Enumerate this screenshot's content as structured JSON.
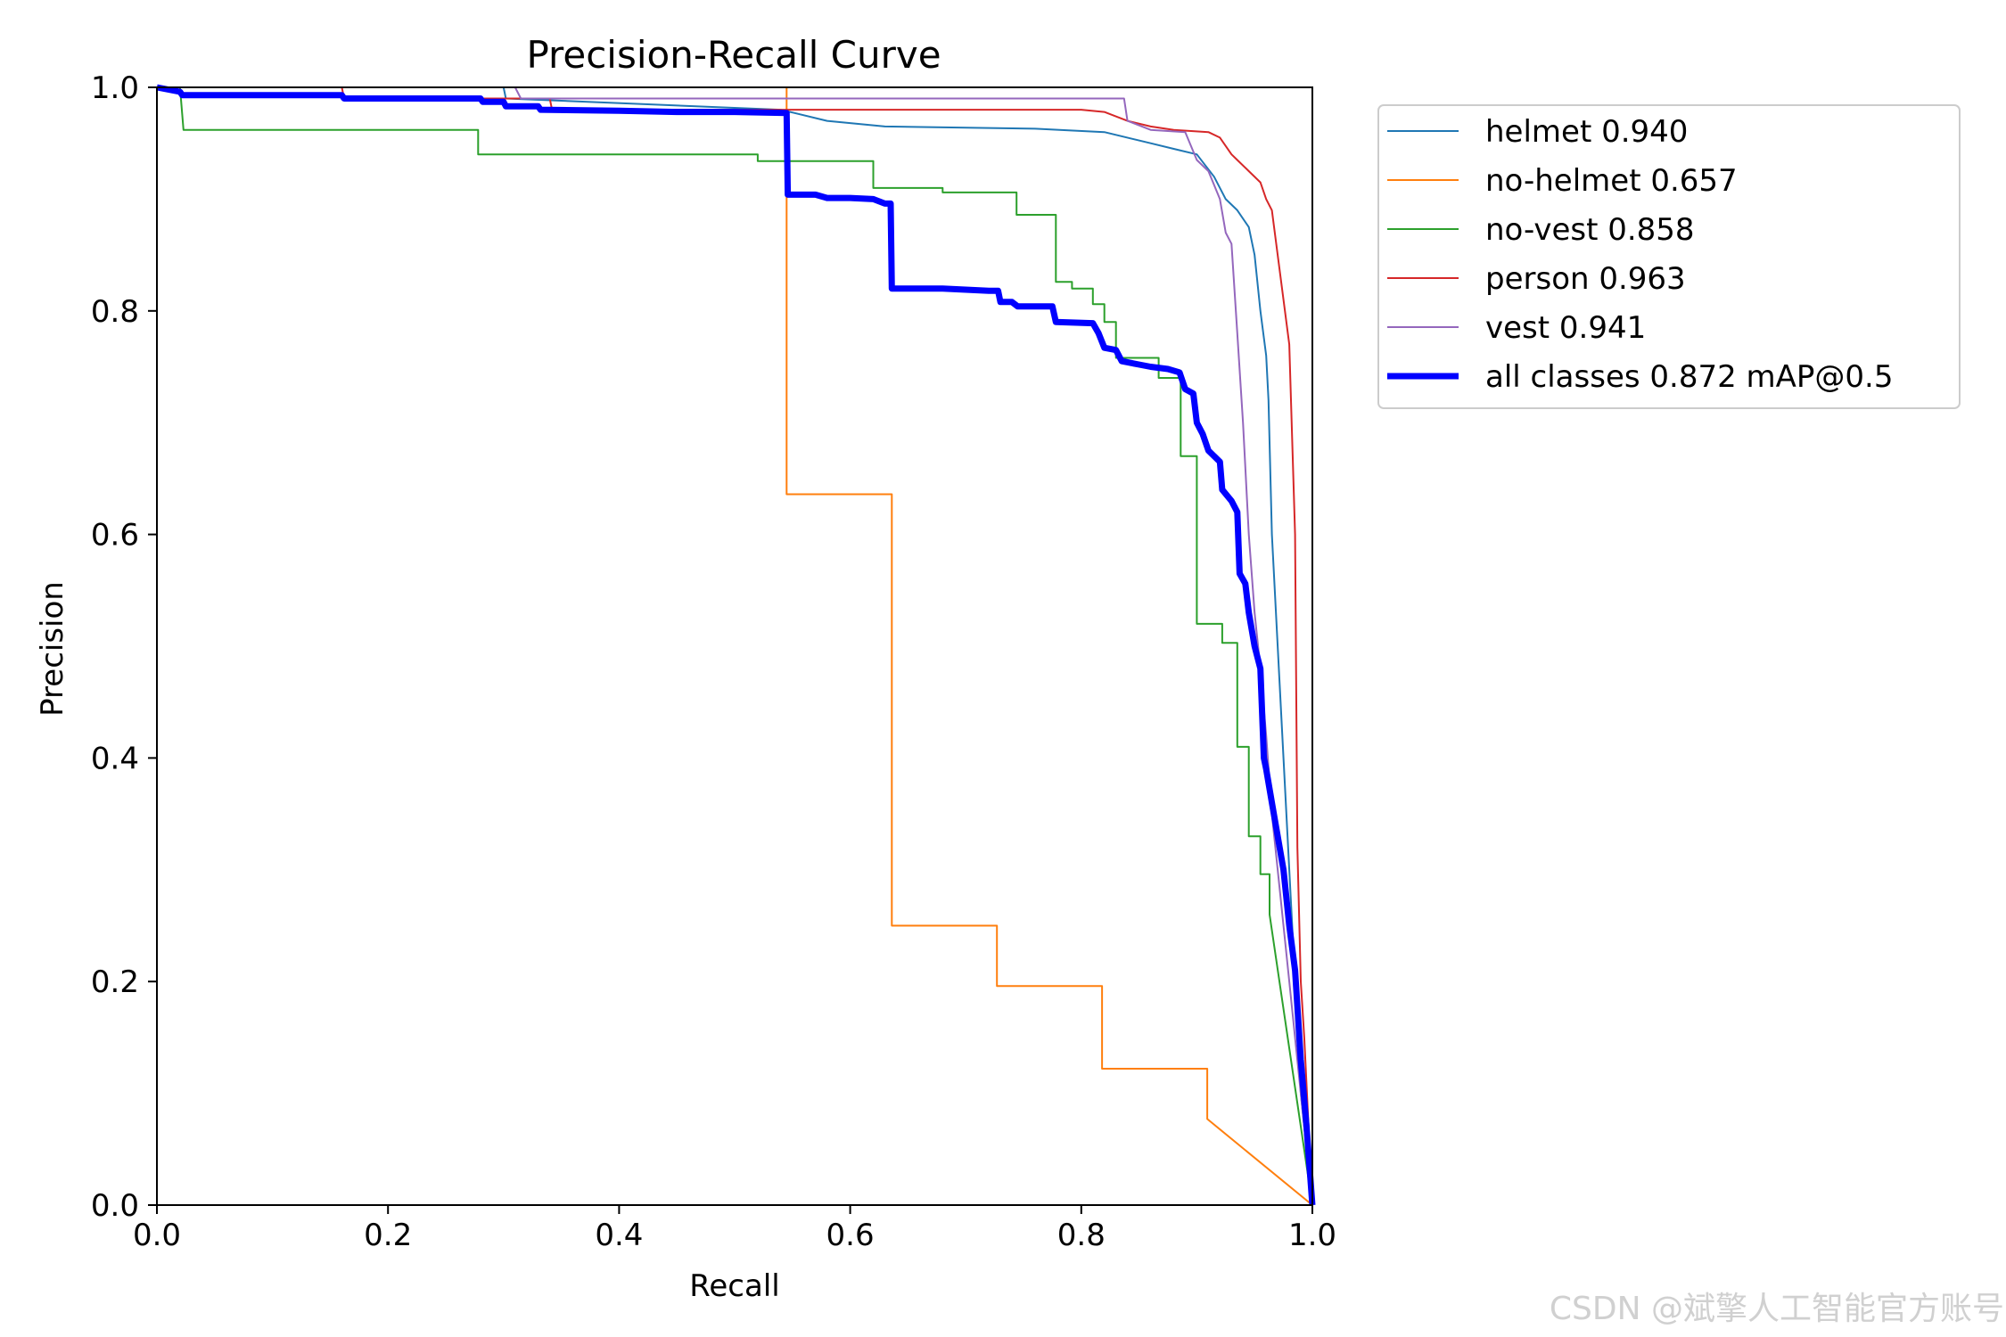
{
  "chart_data": {
    "type": "line",
    "title": "Precision-Recall Curve",
    "xlabel": "Recall",
    "ylabel": "Precision",
    "xlim": [
      0,
      1
    ],
    "ylim": [
      0,
      1
    ],
    "xticks": [
      "0.0",
      "0.2",
      "0.4",
      "0.6",
      "0.8",
      "1.0"
    ],
    "yticks": [
      "0.0",
      "0.2",
      "0.4",
      "0.6",
      "0.8",
      "1.0"
    ],
    "legend_position": "outside-right-top",
    "series": [
      {
        "name": "helmet 0.940",
        "color": "#1f77b4",
        "width": 2,
        "points": [
          [
            0,
            1.0
          ],
          [
            0.3,
            1.0
          ],
          [
            0.302,
            0.99
          ],
          [
            0.54,
            0.98
          ],
          [
            0.58,
            0.97
          ],
          [
            0.63,
            0.965
          ],
          [
            0.76,
            0.963
          ],
          [
            0.82,
            0.96
          ],
          [
            0.86,
            0.95
          ],
          [
            0.88,
            0.945
          ],
          [
            0.9,
            0.94
          ],
          [
            0.915,
            0.92
          ],
          [
            0.925,
            0.9
          ],
          [
            0.935,
            0.89
          ],
          [
            0.945,
            0.875
          ],
          [
            0.95,
            0.85
          ],
          [
            0.955,
            0.8
          ],
          [
            0.96,
            0.76
          ],
          [
            0.962,
            0.72
          ],
          [
            0.965,
            0.6
          ],
          [
            0.97,
            0.5
          ],
          [
            0.975,
            0.4
          ],
          [
            0.98,
            0.3
          ],
          [
            0.985,
            0.2
          ],
          [
            0.99,
            0.1
          ],
          [
            1.0,
            0.0
          ]
        ]
      },
      {
        "name": "no-helmet 0.657",
        "color": "#ff7f0e",
        "width": 2,
        "points": [
          [
            0,
            1.0
          ],
          [
            0.545,
            1.0
          ],
          [
            0.545,
            0.636
          ],
          [
            0.636,
            0.636
          ],
          [
            0.636,
            0.25
          ],
          [
            0.727,
            0.25
          ],
          [
            0.727,
            0.196
          ],
          [
            0.818,
            0.196
          ],
          [
            0.818,
            0.122
          ],
          [
            0.909,
            0.122
          ],
          [
            0.909,
            0.077
          ],
          [
            1.0,
            0.0
          ]
        ]
      },
      {
        "name": "no-vest 0.858",
        "color": "#2ca02c",
        "width": 2,
        "points": [
          [
            0,
            1.0
          ],
          [
            0.02,
            1.0
          ],
          [
            0.023,
            0.962
          ],
          [
            0.278,
            0.962
          ],
          [
            0.278,
            0.94
          ],
          [
            0.52,
            0.94
          ],
          [
            0.52,
            0.934
          ],
          [
            0.62,
            0.934
          ],
          [
            0.62,
            0.91
          ],
          [
            0.68,
            0.91
          ],
          [
            0.68,
            0.906
          ],
          [
            0.744,
            0.906
          ],
          [
            0.744,
            0.886
          ],
          [
            0.778,
            0.886
          ],
          [
            0.778,
            0.826
          ],
          [
            0.792,
            0.826
          ],
          [
            0.792,
            0.82
          ],
          [
            0.81,
            0.82
          ],
          [
            0.81,
            0.806
          ],
          [
            0.82,
            0.806
          ],
          [
            0.82,
            0.79
          ],
          [
            0.83,
            0.79
          ],
          [
            0.83,
            0.758
          ],
          [
            0.867,
            0.758
          ],
          [
            0.867,
            0.74
          ],
          [
            0.886,
            0.74
          ],
          [
            0.886,
            0.67
          ],
          [
            0.9,
            0.67
          ],
          [
            0.9,
            0.52
          ],
          [
            0.922,
            0.52
          ],
          [
            0.922,
            0.503
          ],
          [
            0.935,
            0.503
          ],
          [
            0.935,
            0.41
          ],
          [
            0.945,
            0.41
          ],
          [
            0.945,
            0.33
          ],
          [
            0.955,
            0.33
          ],
          [
            0.955,
            0.296
          ],
          [
            0.963,
            0.296
          ],
          [
            0.963,
            0.26
          ],
          [
            1.0,
            0.0
          ]
        ]
      },
      {
        "name": "person 0.963",
        "color": "#d62728",
        "width": 2,
        "points": [
          [
            0,
            1.0
          ],
          [
            0.16,
            1.0
          ],
          [
            0.162,
            0.99
          ],
          [
            0.34,
            0.99
          ],
          [
            0.342,
            0.98
          ],
          [
            0.8,
            0.98
          ],
          [
            0.82,
            0.978
          ],
          [
            0.84,
            0.97
          ],
          [
            0.86,
            0.965
          ],
          [
            0.88,
            0.962
          ],
          [
            0.91,
            0.96
          ],
          [
            0.92,
            0.955
          ],
          [
            0.93,
            0.94
          ],
          [
            0.935,
            0.935
          ],
          [
            0.945,
            0.925
          ],
          [
            0.955,
            0.915
          ],
          [
            0.96,
            0.9
          ],
          [
            0.965,
            0.89
          ],
          [
            0.97,
            0.85
          ],
          [
            0.975,
            0.81
          ],
          [
            0.98,
            0.77
          ],
          [
            0.985,
            0.6
          ],
          [
            0.987,
            0.32
          ],
          [
            0.99,
            0.2
          ],
          [
            0.993,
            0.15
          ],
          [
            1.0,
            0.0
          ]
        ]
      },
      {
        "name": "vest 0.941",
        "color": "#9467bd",
        "width": 2,
        "points": [
          [
            0,
            1.0
          ],
          [
            0.31,
            1.0
          ],
          [
            0.315,
            0.99
          ],
          [
            0.837,
            0.99
          ],
          [
            0.84,
            0.97
          ],
          [
            0.86,
            0.962
          ],
          [
            0.89,
            0.96
          ],
          [
            0.9,
            0.935
          ],
          [
            0.91,
            0.925
          ],
          [
            0.92,
            0.9
          ],
          [
            0.925,
            0.87
          ],
          [
            0.93,
            0.86
          ],
          [
            0.935,
            0.78
          ],
          [
            0.94,
            0.7
          ],
          [
            0.945,
            0.6
          ],
          [
            0.95,
            0.53
          ],
          [
            0.955,
            0.48
          ],
          [
            0.96,
            0.42
          ],
          [
            0.965,
            0.35
          ],
          [
            0.97,
            0.3
          ],
          [
            0.975,
            0.25
          ],
          [
            0.98,
            0.2
          ],
          [
            0.99,
            0.1
          ],
          [
            1.0,
            0.0
          ]
        ]
      },
      {
        "name": "all classes 0.872 mAP@0.5",
        "color": "#0000ff",
        "width": 7,
        "points": [
          [
            0,
            1.0
          ],
          [
            0.02,
            0.996
          ],
          [
            0.022,
            0.993
          ],
          [
            0.16,
            0.993
          ],
          [
            0.162,
            0.99
          ],
          [
            0.28,
            0.99
          ],
          [
            0.282,
            0.987
          ],
          [
            0.3,
            0.987
          ],
          [
            0.302,
            0.983
          ],
          [
            0.33,
            0.983
          ],
          [
            0.332,
            0.98
          ],
          [
            0.4,
            0.979
          ],
          [
            0.45,
            0.978
          ],
          [
            0.5,
            0.978
          ],
          [
            0.545,
            0.977
          ],
          [
            0.546,
            0.904
          ],
          [
            0.57,
            0.904
          ],
          [
            0.58,
            0.901
          ],
          [
            0.6,
            0.901
          ],
          [
            0.62,
            0.9
          ],
          [
            0.63,
            0.896
          ],
          [
            0.635,
            0.896
          ],
          [
            0.636,
            0.82
          ],
          [
            0.68,
            0.82
          ],
          [
            0.72,
            0.818
          ],
          [
            0.728,
            0.818
          ],
          [
            0.73,
            0.808
          ],
          [
            0.74,
            0.808
          ],
          [
            0.745,
            0.804
          ],
          [
            0.775,
            0.804
          ],
          [
            0.778,
            0.79
          ],
          [
            0.81,
            0.789
          ],
          [
            0.815,
            0.78
          ],
          [
            0.82,
            0.767
          ],
          [
            0.83,
            0.765
          ],
          [
            0.835,
            0.755
          ],
          [
            0.85,
            0.752
          ],
          [
            0.86,
            0.75
          ],
          [
            0.875,
            0.748
          ],
          [
            0.885,
            0.745
          ],
          [
            0.89,
            0.73
          ],
          [
            0.897,
            0.726
          ],
          [
            0.9,
            0.7
          ],
          [
            0.905,
            0.69
          ],
          [
            0.91,
            0.675
          ],
          [
            0.915,
            0.67
          ],
          [
            0.92,
            0.665
          ],
          [
            0.922,
            0.64
          ],
          [
            0.93,
            0.63
          ],
          [
            0.935,
            0.62
          ],
          [
            0.937,
            0.565
          ],
          [
            0.942,
            0.556
          ],
          [
            0.945,
            0.53
          ],
          [
            0.95,
            0.5
          ],
          [
            0.955,
            0.48
          ],
          [
            0.958,
            0.4
          ],
          [
            0.96,
            0.39
          ],
          [
            0.965,
            0.36
          ],
          [
            0.97,
            0.33
          ],
          [
            0.975,
            0.3
          ],
          [
            0.98,
            0.25
          ],
          [
            0.985,
            0.21
          ],
          [
            0.99,
            0.13
          ],
          [
            0.995,
            0.07
          ],
          [
            1.0,
            0.0
          ]
        ]
      }
    ]
  },
  "watermark": "CSDN @斌擎人工智能官方账号"
}
